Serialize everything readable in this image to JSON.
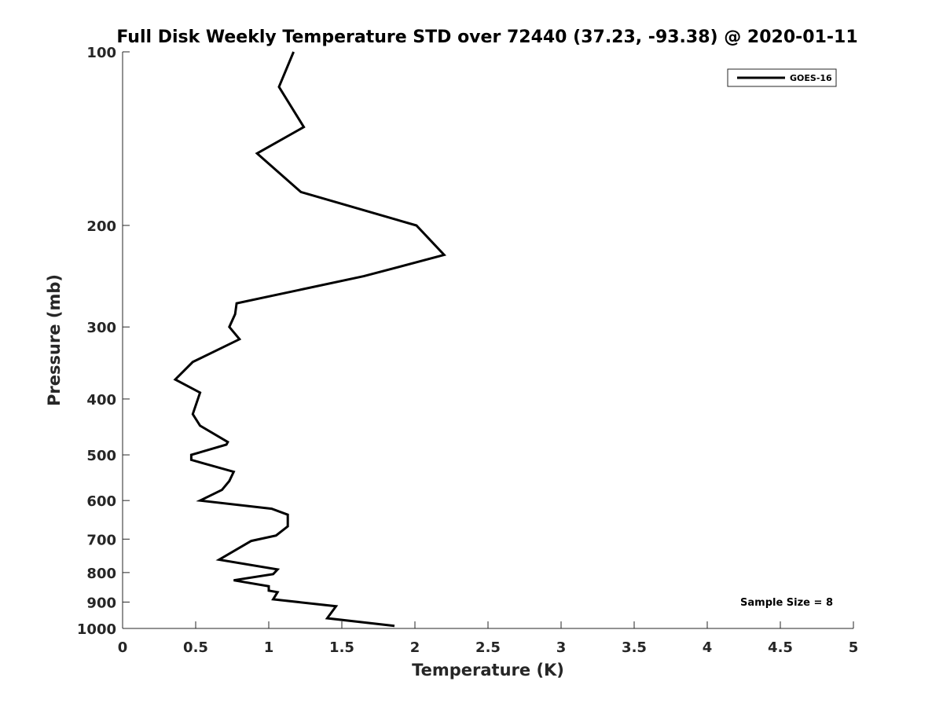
{
  "chart_data": {
    "type": "line",
    "title": "Full Disk Weekly Temperature STD over 72440 (37.23, -93.38) @ 2020-01-11",
    "xlabel": "Temperature (K)",
    "ylabel": "Pressure (mb)",
    "xlim": [
      0,
      5
    ],
    "ylim": [
      100,
      1000
    ],
    "y_scale": "log",
    "y_reversed": true,
    "xticks": [
      0,
      0.5,
      1,
      1.5,
      2,
      2.5,
      3,
      3.5,
      4,
      4.5,
      5
    ],
    "xtick_labels": [
      "0",
      "0.5",
      "1",
      "1.5",
      "2",
      "2.5",
      "3",
      "3.5",
      "4",
      "4.5",
      "5"
    ],
    "yticks": [
      100,
      200,
      300,
      400,
      500,
      600,
      700,
      800,
      900,
      1000
    ],
    "ytick_labels": [
      "100",
      "200",
      "300",
      "400",
      "500",
      "600",
      "700",
      "800",
      "900",
      "1000"
    ],
    "grid": false,
    "legend_position": "top-right",
    "annotation": "Sample Size = 8",
    "series": [
      {
        "name": "GOES-16",
        "color": "#000000",
        "x": [
          1.17,
          1.07,
          1.24,
          0.92,
          1.22,
          2.01,
          2.2,
          1.65,
          0.78,
          0.77,
          0.73,
          0.8,
          0.48,
          0.36,
          0.53,
          0.48,
          0.53,
          0.72,
          0.71,
          0.47,
          0.47,
          0.76,
          0.73,
          0.68,
          0.53,
          1.02,
          1.13,
          1.13,
          1.05,
          0.88,
          0.66,
          1.06,
          1.03,
          0.76,
          1.0,
          1.0,
          1.06,
          1.03,
          1.46,
          1.4,
          1.86
        ],
        "y": [
          100,
          115,
          135,
          150,
          175,
          200,
          225,
          245,
          273,
          285,
          300,
          315,
          345,
          370,
          390,
          425,
          445,
          475,
          480,
          500,
          510,
          535,
          555,
          575,
          600,
          620,
          635,
          665,
          690,
          705,
          760,
          790,
          805,
          825,
          845,
          860,
          865,
          890,
          915,
          960,
          990
        ]
      }
    ]
  }
}
